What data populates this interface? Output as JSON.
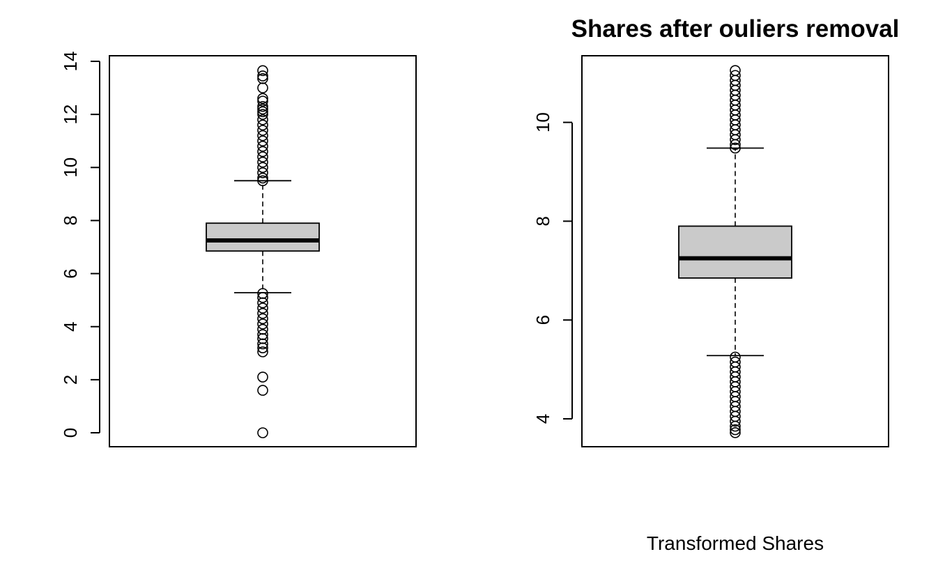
{
  "chart_data": [
    {
      "type": "boxplot",
      "title": "",
      "xlabel": "",
      "ylabel": "",
      "ylim": [
        -0.5,
        14.2
      ],
      "yticks": [
        0,
        2,
        4,
        6,
        8,
        10,
        12,
        14
      ],
      "ytick_labels": [
        "0",
        "2",
        "4",
        "6",
        "8",
        "10",
        "12",
        "14"
      ],
      "box": {
        "q1": 6.85,
        "median": 7.25,
        "q3": 7.9,
        "whisker_low": 5.28,
        "whisker_high": 9.5
      },
      "outliers": [
        13.65,
        13.45,
        13.35,
        13.0,
        12.6,
        12.5,
        12.3,
        12.2,
        12.1,
        12.0,
        11.8,
        11.6,
        11.4,
        11.2,
        11.0,
        10.8,
        10.6,
        10.4,
        10.2,
        10.0,
        9.8,
        9.6,
        9.5,
        5.25,
        5.1,
        4.9,
        4.7,
        4.5,
        4.3,
        4.1,
        3.9,
        3.7,
        3.55,
        3.35,
        3.2,
        3.05,
        2.1,
        1.6,
        0.0
      ]
    },
    {
      "type": "boxplot",
      "title": "Shares after ouliers removal",
      "xlabel": "Transformed Shares",
      "ylabel": "",
      "ylim": [
        3.7,
        11.2
      ],
      "yticks": [
        4,
        6,
        8,
        10
      ],
      "ytick_labels": [
        "4",
        "6",
        "8",
        "10"
      ],
      "box": {
        "q1": 6.85,
        "median": 7.25,
        "q3": 7.9,
        "whisker_low": 5.28,
        "whisker_high": 9.48
      },
      "outliers": [
        11.05,
        10.95,
        10.85,
        10.75,
        10.65,
        10.55,
        10.45,
        10.35,
        10.25,
        10.15,
        10.05,
        9.95,
        9.85,
        9.75,
        9.65,
        9.55,
        9.48,
        5.25,
        5.15,
        5.05,
        4.95,
        4.85,
        4.75,
        4.65,
        4.55,
        4.45,
        4.35,
        4.25,
        4.15,
        4.05,
        3.95,
        3.85,
        3.78,
        3.72
      ]
    }
  ]
}
